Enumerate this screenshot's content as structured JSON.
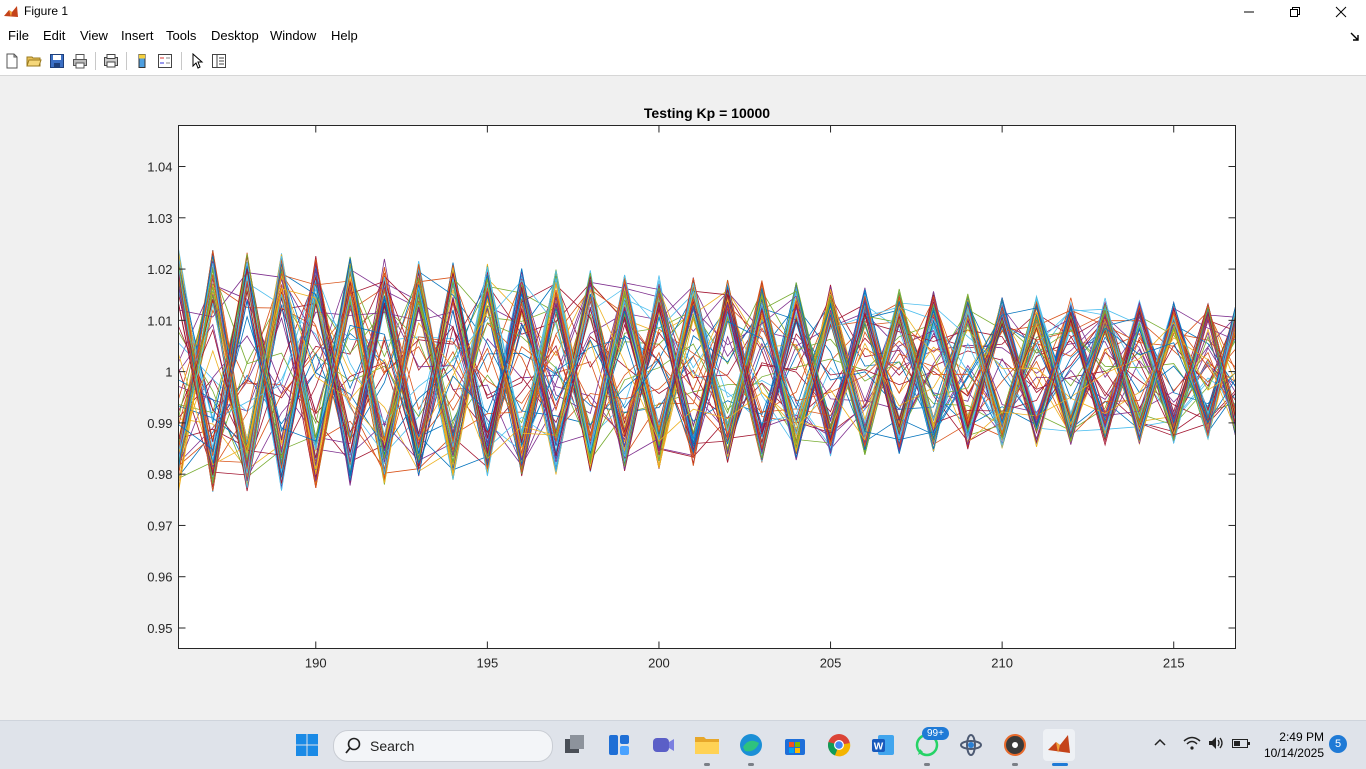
{
  "window": {
    "title": "Figure 1",
    "controls": [
      "minimize",
      "maximize",
      "close"
    ]
  },
  "menu": {
    "items": [
      "File",
      "Edit",
      "View",
      "Insert",
      "Tools",
      "Desktop",
      "Window",
      "Help"
    ]
  },
  "toolbar": {
    "buttons": [
      "new-figure-icon",
      "open-file-icon",
      "save-icon",
      "print-icon",
      "print-preview-icon",
      "colorbar-icon",
      "legend-icon",
      "edit-plot-icon",
      "property-editor-icon"
    ]
  },
  "chart_data": {
    "type": "line",
    "title": "Testing Kp = 10000",
    "xlabel": "",
    "ylabel": "",
    "xlim": [
      186,
      216.8
    ],
    "ylim": [
      0.946,
      1.048
    ],
    "xticks": [
      190,
      195,
      200,
      205,
      210,
      215
    ],
    "yticks": [
      0.95,
      0.96,
      0.97,
      0.98,
      0.99,
      1,
      1.01,
      1.02,
      1.03,
      1.04
    ],
    "ytick_labels": [
      "0.95",
      "0.96",
      "0.97",
      "0.98",
      "0.99",
      "1",
      "1.01",
      "1.02",
      "1.03",
      "1.04"
    ],
    "grid": false,
    "x_sample_step": 1,
    "envelope": {
      "x": [
        186,
        190,
        195,
        200,
        205,
        210,
        215,
        216.8
      ],
      "upper": [
        1.024,
        1.023,
        1.021,
        1.019,
        1.017,
        1.015,
        1.014,
        1.013
      ],
      "lower": [
        0.976,
        0.977,
        0.979,
        0.981,
        0.983,
        0.985,
        0.986,
        0.987
      ]
    },
    "series_count": 100,
    "series_colors": [
      "#0072bd",
      "#d95319",
      "#edb120",
      "#7e2f8e",
      "#77ac30",
      "#4dbeee",
      "#a2142f"
    ]
  },
  "taskbar": {
    "search_label": "Search",
    "apps": [
      "start-icon",
      "task-view-icon",
      "widgets-icon",
      "teams-icon",
      "file-explorer-icon",
      "edge-icon",
      "store-icon",
      "chrome-icon",
      "word-icon",
      "whatsapp-icon",
      "app-icon",
      "media-icon",
      "matlab-icon"
    ],
    "whatsapp_badge": "99+",
    "time": "2:49 PM",
    "date": "10/14/2025",
    "notification_count": "5"
  }
}
